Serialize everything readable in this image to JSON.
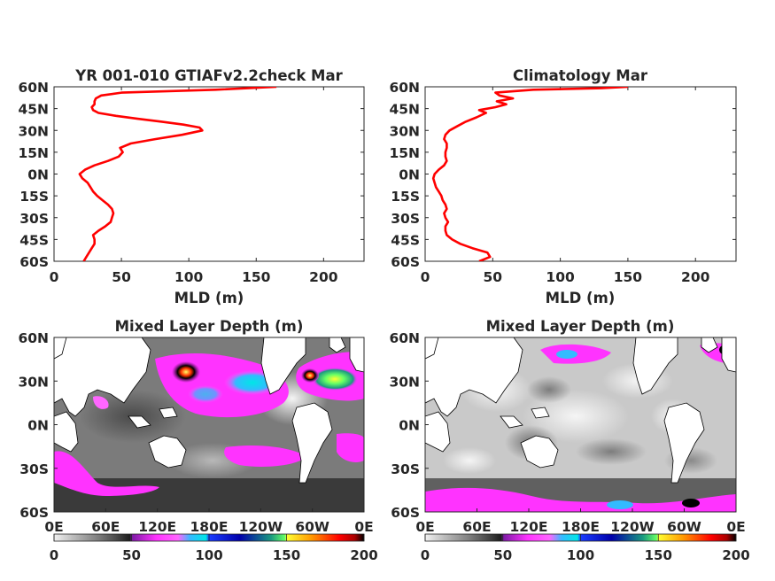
{
  "chart_data": [
    {
      "type": "line",
      "title": "YR 001-010 GTIAFv2.2check Mar",
      "xlabel": "MLD (m)",
      "ylabel": "",
      "xlim": [
        0,
        230
      ],
      "ylim": [
        -60,
        60
      ],
      "x_ticks": [
        "0",
        "50",
        "100",
        "150",
        "200"
      ],
      "y_ticks": [
        "60N",
        "45N",
        "30N",
        "15N",
        "0N",
        "15S",
        "30S",
        "45S",
        "60S"
      ],
      "line_color": "#ff0000",
      "series": [
        {
          "lat": [
            -60,
            -57,
            -54,
            -51,
            -48,
            -45,
            -42,
            -39,
            -36,
            -33,
            -30,
            -27,
            -24,
            -21,
            -18,
            -15,
            -12,
            -9,
            -6,
            -3,
            0,
            3,
            6,
            9,
            12,
            15,
            18,
            21,
            24,
            27,
            30,
            32,
            34,
            36,
            38,
            40,
            42,
            44,
            46,
            48,
            50,
            52,
            54,
            56,
            58,
            60
          ],
          "mld": [
            22,
            24,
            26,
            28,
            30,
            30,
            29,
            33,
            38,
            42,
            43,
            44,
            43,
            40,
            36,
            32,
            29,
            27,
            25,
            21,
            19,
            23,
            30,
            40,
            48,
            51,
            49,
            57,
            75,
            95,
            110,
            108,
            96,
            80,
            62,
            46,
            33,
            29,
            28,
            30,
            30,
            31,
            35,
            50,
            120,
            165
          ]
        }
      ]
    },
    {
      "type": "line",
      "title": "Climatology Mar",
      "xlabel": "MLD (m)",
      "ylabel": "",
      "xlim": [
        0,
        230
      ],
      "ylim": [
        -60,
        60
      ],
      "x_ticks": [
        "0",
        "50",
        "100",
        "150",
        "200"
      ],
      "y_ticks": [
        "60N",
        "45N",
        "30N",
        "15N",
        "0N",
        "15S",
        "30S",
        "45S",
        "60S"
      ],
      "line_color": "#ff0000",
      "series": [
        {
          "lat": [
            -60,
            -57,
            -54,
            -51,
            -48,
            -45,
            -42,
            -39,
            -36,
            -33,
            -30,
            -27,
            -24,
            -21,
            -18,
            -15,
            -12,
            -9,
            -6,
            -3,
            0,
            3,
            6,
            9,
            12,
            15,
            18,
            21,
            24,
            27,
            30,
            33,
            36,
            39,
            42,
            44,
            46,
            48,
            50,
            52,
            54,
            56,
            58,
            59,
            60
          ],
          "mld": [
            40,
            48,
            46,
            35,
            26,
            20,
            16,
            15,
            15,
            17,
            15,
            14,
            16,
            15,
            13,
            12,
            10,
            8,
            7,
            6,
            7,
            10,
            14,
            16,
            15,
            15,
            16,
            16,
            14,
            15,
            18,
            24,
            30,
            38,
            45,
            40,
            52,
            60,
            53,
            65,
            55,
            52,
            80,
            130,
            150
          ]
        }
      ]
    },
    {
      "type": "heatmap",
      "title": "Mixed Layer Depth (m)",
      "x_ticks": [
        "0E",
        "60E",
        "120E",
        "180E",
        "120W",
        "60W",
        "0E"
      ],
      "y_ticks": [
        "60N",
        "30N",
        "0N",
        "30S",
        "60S"
      ],
      "colorbar": {
        "ticks": [
          "0",
          "50",
          "100",
          "150",
          "200"
        ],
        "range": [
          0,
          200
        ],
        "colors": [
          "#f2f2f2",
          "#bdbdbd",
          "#808080",
          "#4a4a4a",
          "#1c1c1c",
          "#7a1aa3",
          "#ff33ff",
          "#ff66ff",
          "#33bbff",
          "#00e6e6",
          "#1a3cff",
          "#0000aa",
          "#1a9980",
          "#66ff66",
          "#ffff33",
          "#ff9900",
          "#ff0000",
          "#aa0000",
          "#000000"
        ]
      }
    },
    {
      "type": "heatmap",
      "title": "Mixed Layer Depth (m)",
      "x_ticks": [
        "0E",
        "60E",
        "120E",
        "180E",
        "120W",
        "60W",
        "0E"
      ],
      "y_ticks": [
        "60N",
        "30N",
        "0N",
        "30S",
        "60S"
      ],
      "colorbar": {
        "ticks": [
          "0",
          "50",
          "100",
          "150",
          "200"
        ],
        "range": [
          0,
          200
        ],
        "colors": [
          "#f2f2f2",
          "#bdbdbd",
          "#808080",
          "#4a4a4a",
          "#1c1c1c",
          "#7a1aa3",
          "#ff33ff",
          "#ff66ff",
          "#33bbff",
          "#00e6e6",
          "#1a3cff",
          "#0000aa",
          "#1a9980",
          "#66ff66",
          "#ffff33",
          "#ff9900",
          "#ff0000",
          "#aa0000",
          "#000000"
        ]
      }
    }
  ]
}
